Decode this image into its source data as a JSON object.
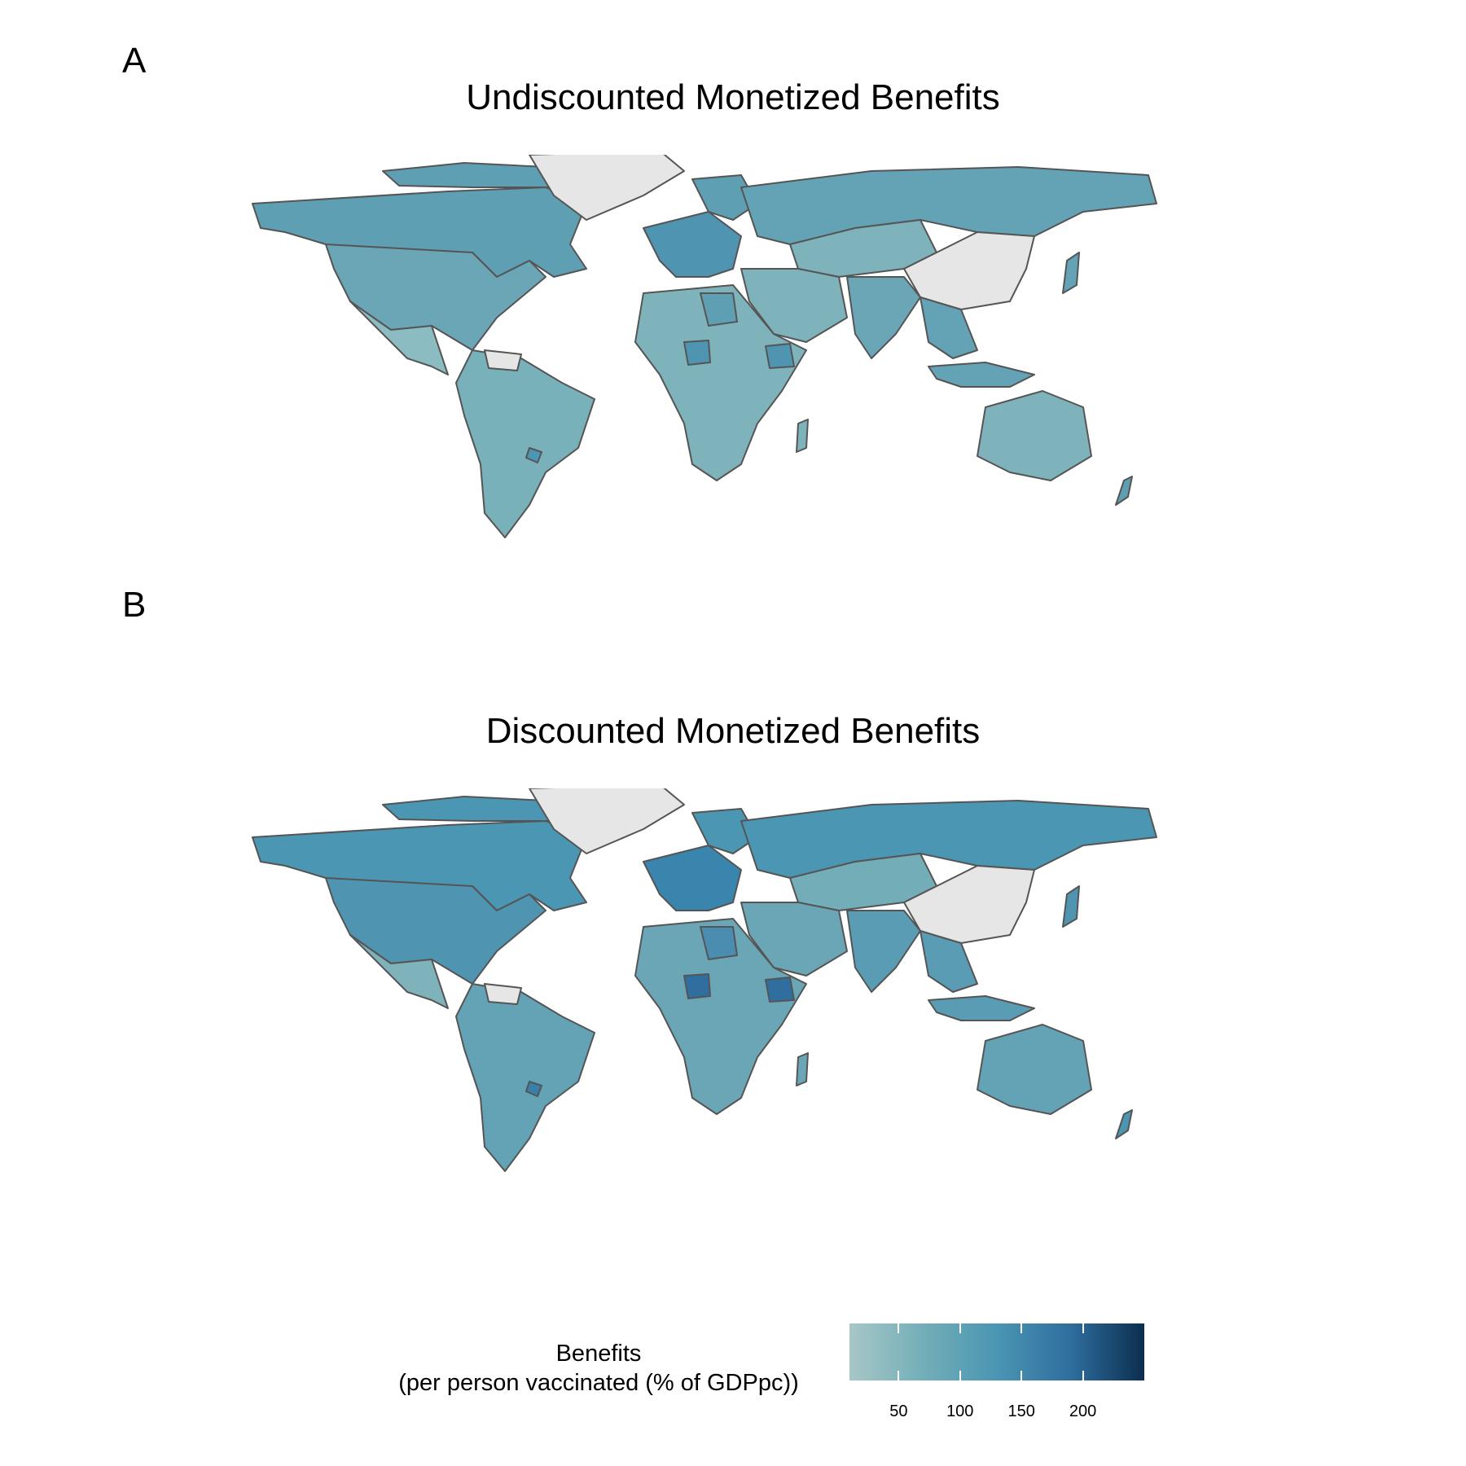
{
  "panels": [
    {
      "letter": "A",
      "title": "Undiscounted Monetized Benefits"
    },
    {
      "letter": "B",
      "title": "Discounted Monetized Benefits"
    }
  ],
  "legend": {
    "title_line1": "Benefits",
    "title_line2": "(per person vaccinated (% of GDPpc))",
    "ticks": [
      "50",
      "100",
      "150",
      "200"
    ],
    "tick_values": [
      50,
      100,
      150,
      200
    ],
    "range": [
      10,
      250
    ],
    "colors": [
      "#a7c7c7",
      "#73aeb8",
      "#4a96b3",
      "#2f6e9e",
      "#0b2e4f"
    ]
  },
  "colors": {
    "no_data": "#e6e6e6",
    "border": "#555555"
  }
}
